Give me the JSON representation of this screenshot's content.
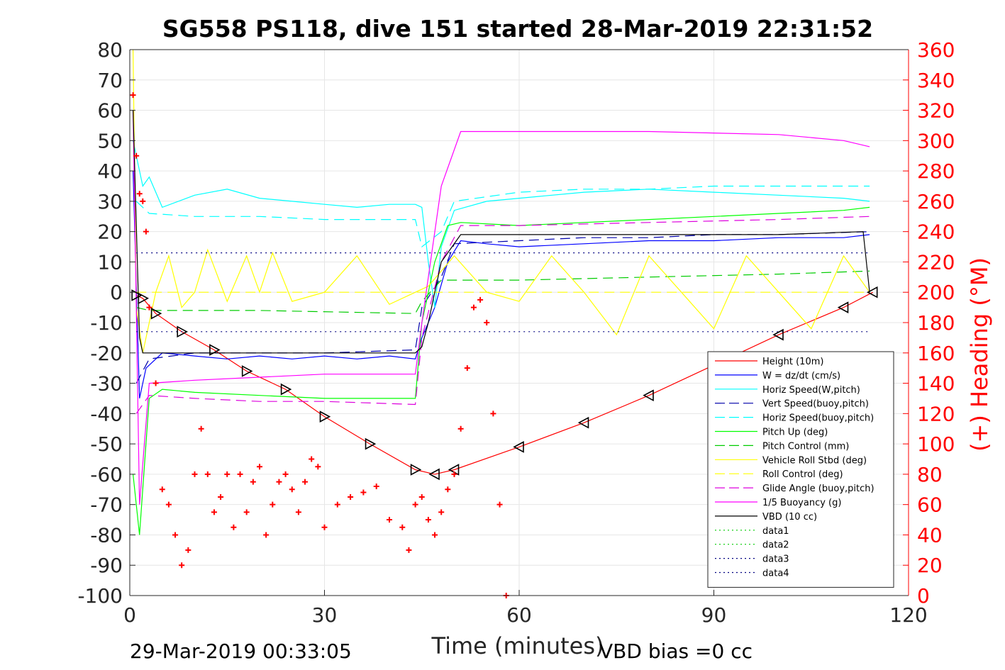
{
  "chart_data": {
    "type": "line",
    "title": "SG558 PS118, dive 151 started 28-Mar-2019 22:31:52",
    "xlabel": "Time (minutes)",
    "ylabel": "",
    "y2label": "(+) Heading (°M)",
    "xlim": [
      0,
      120
    ],
    "ylim": [
      -100,
      80
    ],
    "y2lim": [
      0,
      360
    ],
    "xticks": [
      0,
      30,
      60,
      90,
      120
    ],
    "yticks": [
      80,
      70,
      60,
      50,
      40,
      30,
      20,
      10,
      0,
      -10,
      -20,
      -30,
      -40,
      -50,
      -60,
      -70,
      -80,
      -90,
      -100
    ],
    "y2ticks": [
      360,
      340,
      320,
      300,
      280,
      260,
      240,
      220,
      200,
      180,
      160,
      140,
      120,
      100,
      80,
      60,
      40,
      20,
      0
    ],
    "grid": true,
    "legend_position": "lower-right",
    "footer_left": "29-Mar-2019 00:33:05",
    "footer_right": "VBD bias =0 cc",
    "series": [
      {
        "name": "Height (10m)",
        "color": "#ff0000",
        "style": "solid",
        "x": [
          1,
          2,
          4,
          8,
          13,
          18,
          24,
          30,
          37,
          44,
          47,
          50,
          60,
          70,
          80,
          90,
          100,
          110,
          114.5
        ],
        "y": [
          -1,
          -2,
          -7,
          -13,
          -19,
          -26,
          -32,
          -41,
          -50,
          -58.5,
          -60,
          -58.5,
          -51,
          -43,
          -34,
          -24,
          -14,
          -5,
          0
        ]
      },
      {
        "name": "W = dz/dt (cm/s)",
        "color": "#0000ff",
        "style": "solid",
        "x": [
          0.5,
          1.5,
          2.5,
          5,
          10,
          15,
          20,
          25,
          30,
          35,
          40,
          44,
          45,
          47,
          49,
          51,
          55,
          60,
          70,
          80,
          90,
          100,
          110,
          114
        ],
        "y": [
          40,
          -35,
          -25,
          -20,
          -21,
          -22,
          -21,
          -22,
          -21,
          -22,
          -21,
          -22,
          -15,
          -5,
          10,
          17,
          16,
          15,
          16,
          17,
          17,
          18,
          18,
          19
        ]
      },
      {
        "name": "Horiz Speed(W,pitch)",
        "color": "#00ffff",
        "style": "solid",
        "x": [
          0.5,
          2,
          3,
          5,
          10,
          15,
          20,
          25,
          30,
          35,
          40,
          44,
          45,
          46,
          47,
          48,
          50,
          55,
          60,
          70,
          80,
          90,
          100,
          110,
          114
        ],
        "y": [
          50,
          35,
          38,
          28,
          32,
          34,
          31,
          30,
          29,
          28,
          29,
          29,
          28,
          10,
          -5,
          15,
          27,
          30,
          31,
          33,
          34,
          33,
          32,
          31,
          30
        ]
      },
      {
        "name": "Vert Speed(buoy,pitch)",
        "color": "#0000aa",
        "style": "dashed",
        "x": [
          1,
          3,
          10,
          20,
          30,
          44,
          45,
          48,
          50,
          60,
          70,
          80,
          90,
          100,
          114
        ],
        "y": [
          -30,
          -22,
          -20,
          -20,
          -20,
          -19,
          -5,
          5,
          16,
          17,
          18,
          18,
          19,
          19,
          20
        ]
      },
      {
        "name": "Horiz Speed(buoy,pitch)",
        "color": "#00ffff",
        "style": "dashed",
        "x": [
          1,
          3,
          10,
          20,
          30,
          44,
          45,
          48,
          50,
          60,
          70,
          80,
          90,
          100,
          114
        ],
        "y": [
          30,
          26,
          25,
          25,
          24,
          24,
          15,
          20,
          30,
          33,
          34,
          34,
          35,
          35,
          35
        ]
      },
      {
        "name": "Pitch Up (deg)",
        "color": "#00ff00",
        "style": "solid",
        "x": [
          0.5,
          1.5,
          3,
          5,
          10,
          20,
          30,
          44,
          45,
          47,
          49,
          51,
          60,
          70,
          80,
          90,
          100,
          110,
          114
        ],
        "y": [
          -60,
          -80,
          -35,
          -32,
          -33,
          -34,
          -35,
          -35,
          -10,
          10,
          22,
          23,
          22,
          23,
          24,
          25,
          26,
          27,
          28
        ]
      },
      {
        "name": "Pitch Control (mm)",
        "color": "#00cc00",
        "style": "dashed",
        "x": [
          1,
          3,
          20,
          44,
          45,
          48,
          60,
          80,
          100,
          114
        ],
        "y": [
          -5,
          -6,
          -6,
          -7,
          -3,
          4,
          4,
          5,
          6,
          7
        ]
      },
      {
        "name": "Vehicle Roll Stbd (deg)",
        "color": "#ffff00",
        "style": "solid",
        "x": [
          0.5,
          1,
          2,
          4,
          6,
          8,
          10,
          12,
          15,
          18,
          20,
          22,
          25,
          30,
          35,
          40,
          44,
          46,
          50,
          55,
          60,
          65,
          70,
          75,
          80,
          85,
          90,
          95,
          100,
          105,
          110,
          114
        ],
        "y": [
          80,
          -5,
          -20,
          0,
          12,
          -5,
          0,
          14,
          -3,
          12,
          0,
          13,
          -3,
          0,
          12,
          -4,
          0,
          2,
          12,
          0,
          -3,
          12,
          0,
          -14,
          12,
          0,
          -12,
          12,
          0,
          -12,
          12,
          0
        ]
      },
      {
        "name": "Roll Control (deg)",
        "color": "#ffff00",
        "style": "dashed",
        "x": [
          1,
          10,
          30,
          44,
          50,
          80,
          114
        ],
        "y": [
          0,
          0,
          0,
          0,
          0,
          0,
          0
        ]
      },
      {
        "name": "Glide Angle (buoy,pitch)",
        "color": "#dd00dd",
        "style": "dashed",
        "x": [
          1,
          3,
          10,
          20,
          30,
          44,
          45,
          48,
          51,
          60,
          80,
          100,
          114
        ],
        "y": [
          -40,
          -34,
          -35,
          -36,
          -36,
          -37,
          -15,
          10,
          22,
          22,
          23,
          24,
          25
        ]
      },
      {
        "name": "1/5 Buoyancy (g)",
        "color": "#ff00ff",
        "style": "solid",
        "x": [
          0.5,
          1.5,
          3,
          10,
          20,
          30,
          44,
          45,
          48,
          51,
          60,
          80,
          100,
          110,
          114
        ],
        "y": [
          60,
          -70,
          -30,
          -29,
          -28,
          -27,
          -27,
          -10,
          35,
          53,
          53,
          53,
          52,
          50,
          48
        ]
      },
      {
        "name": "VBD (10 cc)",
        "color": "#000000",
        "style": "solid",
        "x": [
          0.5,
          1.5,
          2,
          44,
          45,
          46,
          47,
          48,
          51,
          60,
          80,
          100,
          113,
          114
        ],
        "y": [
          60,
          -15,
          -20,
          -20,
          -18,
          -10,
          0,
          10,
          19,
          19,
          19,
          19,
          20,
          0
        ]
      },
      {
        "name": "data1",
        "color": "#00cc00",
        "style": "dotted",
        "x": [],
        "y": []
      },
      {
        "name": "data2",
        "color": "#00cc00",
        "style": "dotted",
        "x": [],
        "y": []
      },
      {
        "name": "data3",
        "color": "#000080",
        "style": "dotted",
        "x": [
          1,
          114
        ],
        "y": [
          -13,
          -13
        ]
      },
      {
        "name": "data4",
        "color": "#000080",
        "style": "dotted",
        "x": [
          1,
          114
        ],
        "y": [
          13,
          13
        ]
      }
    ],
    "heading": {
      "name": "(+) Heading (°M)",
      "color": "#ff0000",
      "axis": "right",
      "x": [
        0.5,
        1,
        1.5,
        2,
        2.5,
        3,
        4,
        5,
        6,
        7,
        8,
        9,
        10,
        11,
        12,
        13,
        14,
        15,
        16,
        17,
        18,
        19,
        20,
        21,
        22,
        23,
        24,
        25,
        26,
        27,
        28,
        29,
        30,
        32,
        34,
        36,
        38,
        40,
        42,
        43,
        44,
        45,
        46,
        47,
        48,
        49,
        50,
        51,
        52,
        53,
        54,
        55,
        56,
        57,
        58
      ],
      "y": [
        330,
        290,
        265,
        260,
        240,
        190,
        140,
        70,
        60,
        40,
        20,
        30,
        80,
        110,
        80,
        55,
        65,
        80,
        45,
        80,
        55,
        75,
        85,
        40,
        60,
        75,
        80,
        70,
        55,
        75,
        90,
        85,
        45,
        60,
        65,
        68,
        72,
        50,
        45,
        30,
        60,
        65,
        50,
        40,
        55,
        70,
        80,
        110,
        150,
        190,
        195,
        180,
        120,
        60,
        0
      ]
    }
  }
}
